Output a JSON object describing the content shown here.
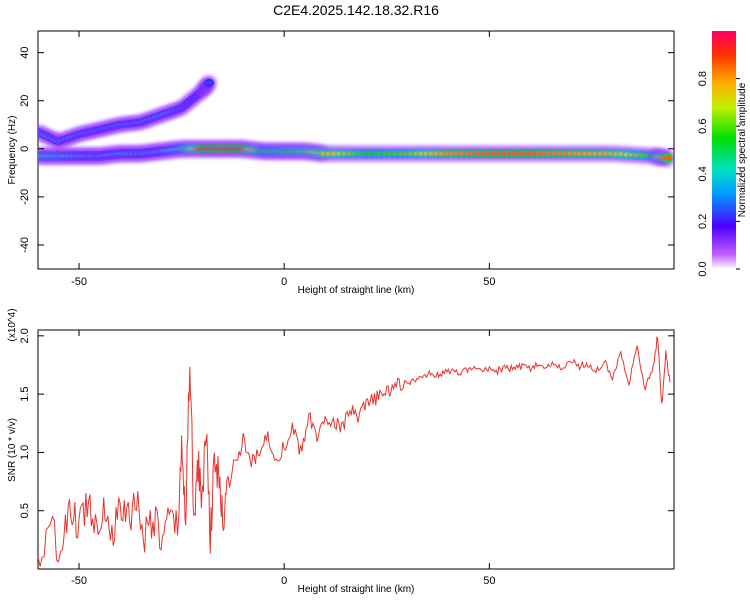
{
  "title": "C2E4.2025.142.18.32.R16",
  "chart_data": [
    {
      "type": "heatmap",
      "xlabel": "Height of straight line (km)",
      "ylabel": "Frequency (Hz)",
      "xlim": [
        -60,
        95
      ],
      "ylim": [
        -50,
        49
      ],
      "xticks": [
        -50,
        0,
        50
      ],
      "yticks": [
        -40,
        -20,
        0,
        20,
        40
      ],
      "colorbar": {
        "label": "Normalized spectral amplitude",
        "range": [
          0,
          1
        ],
        "ticks": [
          "0.0",
          "0.2",
          "0.4",
          "0.6",
          "0.8"
        ]
      },
      "main_band": {
        "x": [
          -60,
          -55,
          -50,
          -45,
          -40,
          -35,
          -30,
          -25,
          -20,
          -15,
          -10,
          -5,
          0,
          5,
          10,
          20,
          30,
          40,
          50,
          60,
          70,
          80,
          90,
          94
        ],
        "freq": [
          -3,
          -3,
          -3,
          -3,
          -2,
          -2,
          -1,
          0,
          0,
          0,
          0,
          -1,
          -1,
          -1,
          -2,
          -2,
          -2,
          -2,
          -2,
          -2,
          -2,
          -2,
          -3,
          -4
        ],
        "amplitude": [
          0.45,
          0.4,
          0.35,
          0.3,
          0.35,
          0.3,
          0.35,
          0.45,
          0.9,
          0.95,
          0.9,
          0.5,
          0.55,
          0.6,
          0.75,
          0.55,
          0.6,
          0.8,
          0.85,
          0.85,
          0.8,
          0.75,
          0.55,
          0.9
        ]
      },
      "upper_branch": {
        "x": [
          -60,
          -55,
          -50,
          -45,
          -40,
          -35,
          -30,
          -25,
          -20,
          -18
        ],
        "freq": [
          7,
          3,
          6,
          8,
          10,
          11,
          14,
          17,
          24,
          28
        ],
        "amplitude": [
          0.35,
          0.3,
          0.3,
          0.25,
          0.3,
          0.3,
          0.35,
          0.25,
          0.2,
          0.25
        ]
      }
    },
    {
      "type": "line",
      "xlabel": "Height of straight line (km)",
      "ylabel": "SNR (10 * v/v)",
      "y_multiplier": "(x10^4)",
      "xlim": [
        -60,
        95
      ],
      "ylim": [
        0,
        2.05
      ],
      "xticks": [
        -50,
        0,
        50
      ],
      "yticks": [
        "0.5",
        "1.0",
        "1.5",
        "2.0"
      ],
      "color": "#e8332e",
      "series": [
        {
          "x": [
            -60,
            -57,
            -54,
            -52,
            -50,
            -48,
            -46,
            -44,
            -42,
            -40,
            -38,
            -36,
            -34,
            -32,
            -30,
            -28,
            -26,
            -25,
            -24,
            -23,
            -22,
            -21,
            -20,
            -19,
            -18,
            -17,
            -16,
            -15,
            -14,
            -12,
            -10,
            -8,
            -6,
            -4,
            -2,
            0,
            2,
            4,
            6,
            8,
            10,
            12,
            14,
            16,
            18,
            20,
            22,
            24,
            26,
            28,
            30,
            32,
            34,
            36,
            38,
            40,
            42,
            44,
            46,
            48,
            50,
            52,
            54,
            56,
            58,
            60,
            62,
            64,
            66,
            68,
            70,
            72,
            74,
            76,
            78,
            80,
            82,
            84,
            86,
            88,
            90,
            91,
            92,
            93,
            94
          ],
          "y": [
            0.05,
            0.3,
            0.2,
            0.5,
            0.35,
            0.6,
            0.4,
            0.55,
            0.3,
            0.5,
            0.45,
            0.6,
            0.3,
            0.45,
            0.25,
            0.4,
            0.35,
            1.0,
            0.5,
            1.8,
            0.4,
            0.9,
            0.6,
            1.2,
            0.3,
            0.9,
            0.8,
            0.4,
            0.7,
            0.9,
            1.1,
            0.9,
            1.0,
            1.15,
            0.95,
            1.05,
            1.2,
            1.0,
            1.3,
            1.15,
            1.25,
            1.3,
            1.2,
            1.35,
            1.3,
            1.4,
            1.45,
            1.5,
            1.55,
            1.58,
            1.6,
            1.62,
            1.65,
            1.68,
            1.66,
            1.7,
            1.68,
            1.7,
            1.72,
            1.7,
            1.72,
            1.7,
            1.73,
            1.71,
            1.74,
            1.72,
            1.75,
            1.73,
            1.76,
            1.72,
            1.78,
            1.74,
            1.76,
            1.7,
            1.78,
            1.65,
            1.85,
            1.6,
            1.9,
            1.55,
            1.75,
            2.0,
            1.4,
            1.85,
            1.6
          ]
        }
      ]
    }
  ]
}
